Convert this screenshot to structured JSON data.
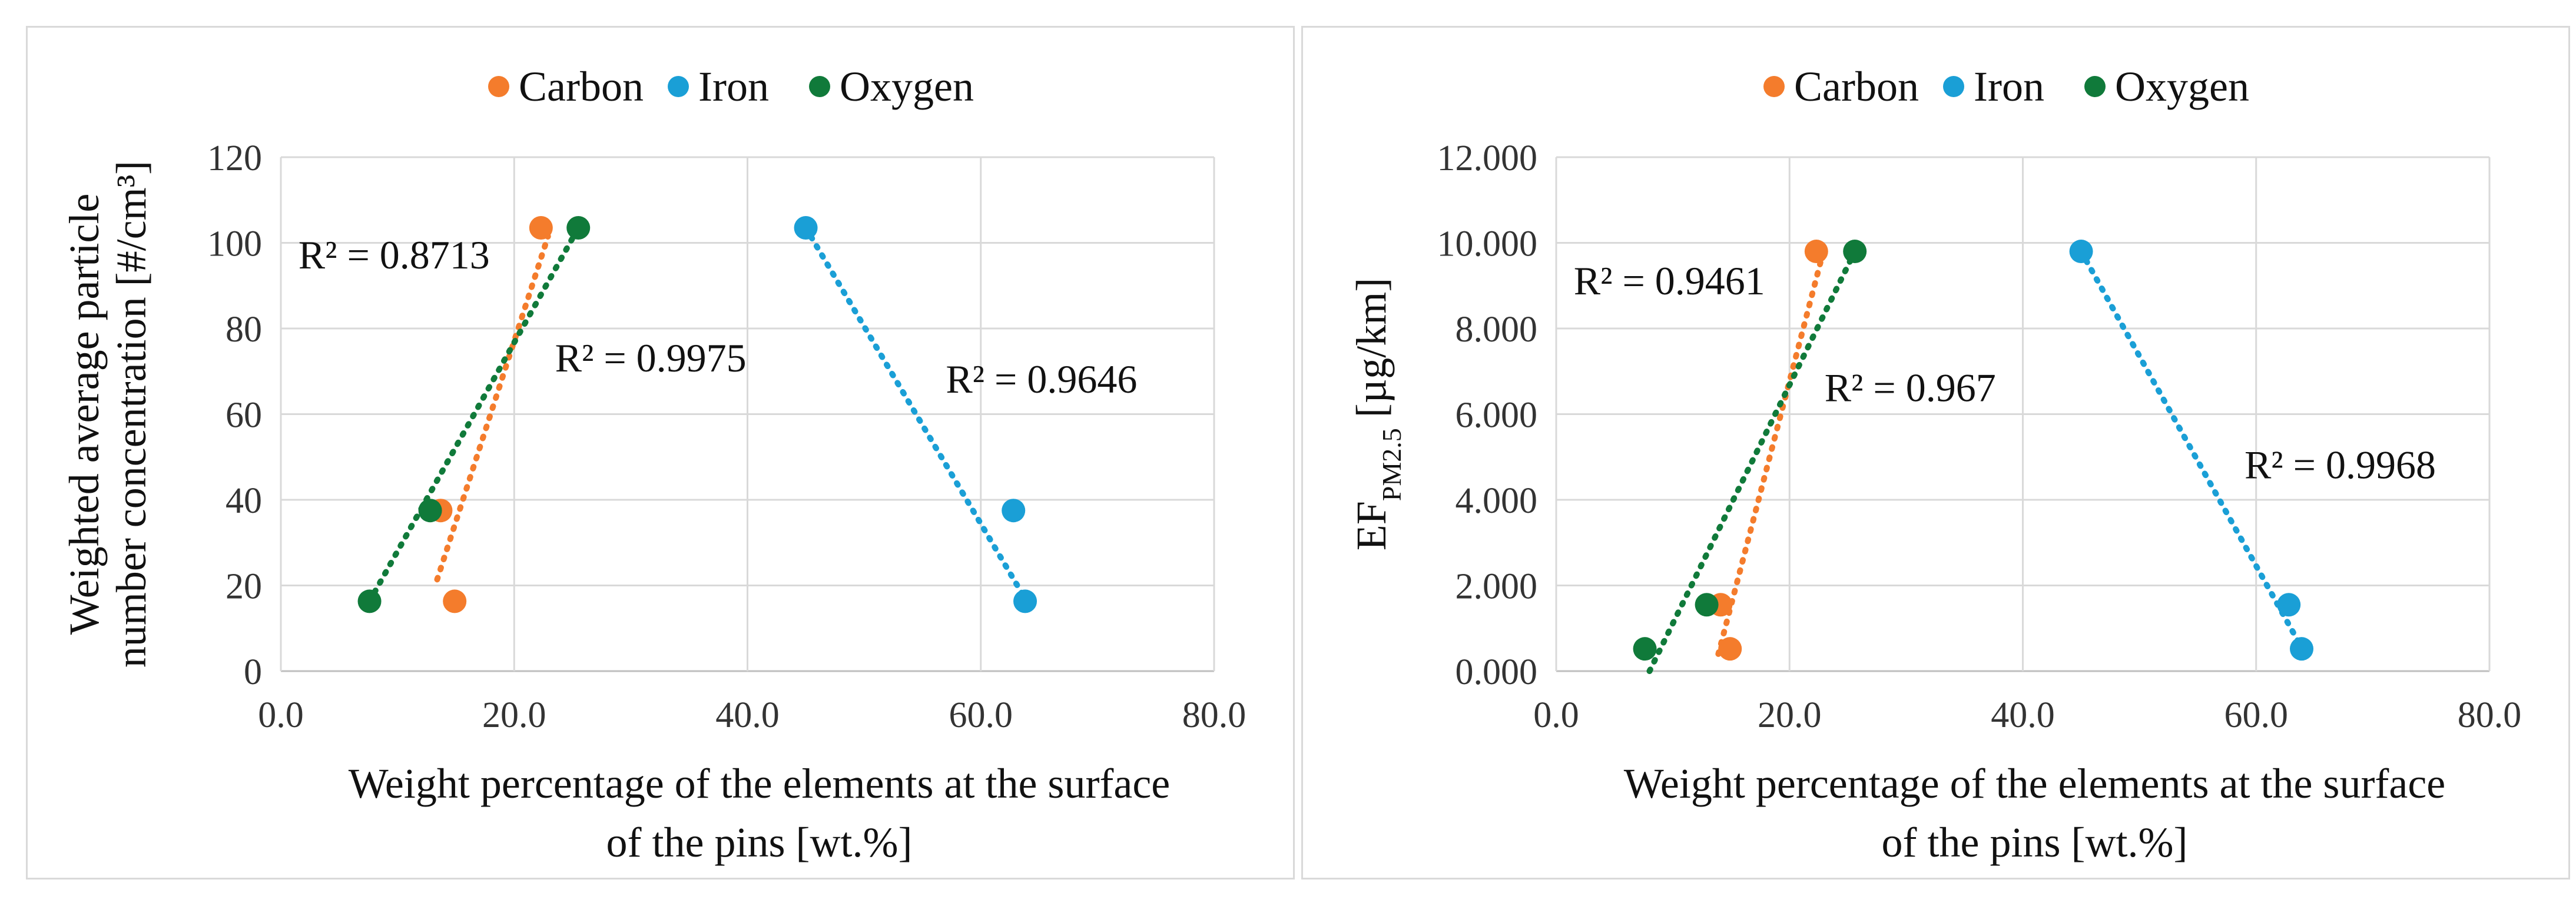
{
  "chart_data": [
    {
      "type": "scatter",
      "title": "",
      "xlabel_lines": [
        "Weight percentage of the elements at the surface",
        "of the pins [wt.%]"
      ],
      "ylabel_lines": [
        "Weighted average particle",
        "number concentration [#/cm³]"
      ],
      "xlim": [
        0,
        80
      ],
      "ylim": [
        0,
        120
      ],
      "xticks": [
        "0.0",
        "20.0",
        "40.0",
        "60.0",
        "80.0"
      ],
      "yticks": [
        "0",
        "20",
        "40",
        "60",
        "80",
        "100",
        "120"
      ],
      "legend": [
        "Carbon",
        "Iron",
        "Oxygen"
      ],
      "series": [
        {
          "name": "Carbon",
          "color": "#f47c2c",
          "points": [
            [
              22.3,
              103.5
            ],
            [
              13.7,
              37.5
            ],
            [
              14.9,
              16.3
            ]
          ],
          "trend": [
            [
              13.4,
              21.4
            ],
            [
              22.9,
              101.5
            ]
          ],
          "r2": "R² = 0.8713",
          "r2_pos": [
            1.5,
            94
          ]
        },
        {
          "name": "Iron",
          "color": "#1a9fd6",
          "points": [
            [
              45.0,
              103.5
            ],
            [
              62.8,
              37.5
            ],
            [
              63.8,
              16.3
            ]
          ],
          "trend": [
            [
              45.0,
              103.5
            ],
            [
              64.0,
              16.0
            ]
          ],
          "r2": "R² = 0.9646",
          "r2_pos": [
            57.0,
            65
          ]
        },
        {
          "name": "Oxygen",
          "color": "#107a3a",
          "points": [
            [
              25.5,
              103.5
            ],
            [
              12.8,
              37.5
            ],
            [
              7.6,
              16.3
            ]
          ],
          "trend": [
            [
              7.6,
              16.3
            ],
            [
              25.5,
              103.5
            ]
          ],
          "r2": "R² = 0.9975",
          "r2_pos": [
            23.5,
            70
          ]
        }
      ]
    },
    {
      "type": "scatter",
      "title": "",
      "xlabel_lines": [
        "Weight percentage of the elements at the surface",
        "of the pins [wt.%]"
      ],
      "ylabel_main": "EF",
      "ylabel_sub": "PM2.5",
      "ylabel_rest": " [µg/km]",
      "xlim": [
        0,
        80
      ],
      "ylim": [
        0,
        12
      ],
      "xticks": [
        "0.0",
        "20.0",
        "40.0",
        "60.0",
        "80.0"
      ],
      "yticks": [
        "0.000",
        "2.000",
        "4.000",
        "6.000",
        "8.000",
        "10.000",
        "12.000"
      ],
      "legend": [
        "Carbon",
        "Iron",
        "Oxygen"
      ],
      "series": [
        {
          "name": "Carbon",
          "color": "#f47c2c",
          "points": [
            [
              22.3,
              9.8
            ],
            [
              14.1,
              1.55
            ],
            [
              14.9,
              0.52
            ]
          ],
          "trend": [
            [
              13.9,
              0.4
            ],
            [
              22.9,
              9.8
            ]
          ],
          "r2": "R² = 0.9461",
          "r2_pos": [
            1.5,
            8.8
          ]
        },
        {
          "name": "Iron",
          "color": "#1a9fd6",
          "points": [
            [
              45.0,
              9.8
            ],
            [
              62.8,
              1.55
            ],
            [
              63.9,
              0.52
            ]
          ],
          "trend": [
            [
              45.0,
              9.8
            ],
            [
              64.0,
              0.5
            ]
          ],
          "r2": "R² = 0.9968",
          "r2_pos": [
            59.0,
            4.5
          ]
        },
        {
          "name": "Oxygen",
          "color": "#107a3a",
          "points": [
            [
              25.6,
              9.8
            ],
            [
              12.9,
              1.55
            ],
            [
              7.6,
              0.52
            ]
          ],
          "trend": [
            [
              8.0,
              0.0
            ],
            [
              25.6,
              9.8
            ]
          ],
          "r2": "R² = 0.967",
          "r2_pos": [
            23.0,
            6.3
          ]
        }
      ]
    }
  ]
}
